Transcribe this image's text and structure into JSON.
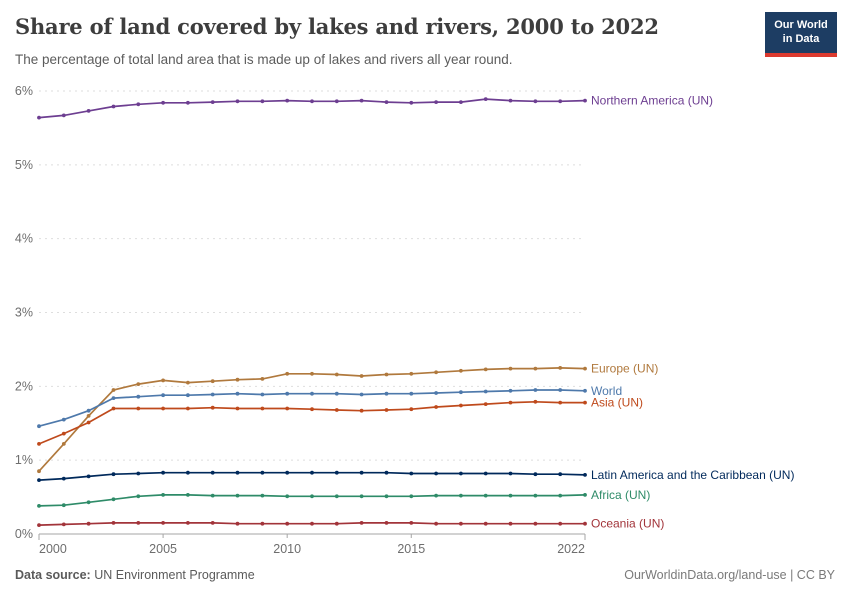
{
  "header": {
    "title": "Share of land covered by lakes and rivers, 2000 to 2022",
    "subtitle": "The percentage of total land area that is made up of lakes and rivers all year round.",
    "logo": {
      "line1": "Our World",
      "line2": "in Data",
      "bg_color": "#1d3d63",
      "bar_color": "#dc3a2f"
    }
  },
  "footer": {
    "datasource_label": "Data source:",
    "datasource_value": " UN Environment Programme",
    "credit": "OurWorldinData.org/land-use | CC BY"
  },
  "chart_data": {
    "type": "line",
    "title": "Share of land covered by lakes and rivers, 2000 to 2022",
    "xlabel": "",
    "ylabel": "",
    "x": [
      2000,
      2001,
      2002,
      2003,
      2004,
      2005,
      2006,
      2007,
      2008,
      2009,
      2010,
      2011,
      2012,
      2013,
      2014,
      2015,
      2016,
      2017,
      2018,
      2019,
      2020,
      2021,
      2022
    ],
    "xlim": [
      2000,
      2022
    ],
    "ylim": [
      0,
      6
    ],
    "xticks": [
      2000,
      2005,
      2010,
      2015,
      2022
    ],
    "yticks": [
      0,
      1,
      2,
      3,
      4,
      5,
      6
    ],
    "ytick_format": "percent",
    "grid": "horizontal-dashed",
    "legend_position": "right-end-labels",
    "series": [
      {
        "name": "Northern America (UN)",
        "color": "#6d3e91",
        "values": [
          5.64,
          5.67,
          5.73,
          5.79,
          5.82,
          5.84,
          5.84,
          5.85,
          5.86,
          5.86,
          5.87,
          5.86,
          5.86,
          5.87,
          5.85,
          5.84,
          5.85,
          5.85,
          5.89,
          5.87,
          5.86,
          5.86,
          5.87
        ]
      },
      {
        "name": "Europe (UN)",
        "color": "#b0793d",
        "values": [
          0.85,
          1.22,
          1.6,
          1.95,
          2.03,
          2.08,
          2.05,
          2.07,
          2.09,
          2.1,
          2.17,
          2.17,
          2.16,
          2.14,
          2.16,
          2.17,
          2.19,
          2.21,
          2.23,
          2.24,
          2.24,
          2.25,
          2.24
        ]
      },
      {
        "name": "World",
        "color": "#4e79ab",
        "values": [
          1.46,
          1.55,
          1.67,
          1.84,
          1.86,
          1.88,
          1.88,
          1.89,
          1.9,
          1.89,
          1.9,
          1.9,
          1.9,
          1.89,
          1.9,
          1.9,
          1.91,
          1.92,
          1.93,
          1.94,
          1.95,
          1.95,
          1.94
        ]
      },
      {
        "name": "Asia (UN)",
        "color": "#bf4a1c",
        "values": [
          1.22,
          1.36,
          1.51,
          1.7,
          1.7,
          1.7,
          1.7,
          1.71,
          1.7,
          1.7,
          1.7,
          1.69,
          1.68,
          1.67,
          1.68,
          1.69,
          1.72,
          1.74,
          1.76,
          1.78,
          1.79,
          1.78,
          1.78
        ]
      },
      {
        "name": "Latin America and the Caribbean (UN)",
        "color": "#00295b",
        "values": [
          0.73,
          0.75,
          0.78,
          0.81,
          0.82,
          0.83,
          0.83,
          0.83,
          0.83,
          0.83,
          0.83,
          0.83,
          0.83,
          0.83,
          0.83,
          0.82,
          0.82,
          0.82,
          0.82,
          0.82,
          0.81,
          0.81,
          0.8
        ]
      },
      {
        "name": "Africa (UN)",
        "color": "#2e8b68",
        "values": [
          0.38,
          0.39,
          0.43,
          0.47,
          0.51,
          0.53,
          0.53,
          0.52,
          0.52,
          0.52,
          0.51,
          0.51,
          0.51,
          0.51,
          0.51,
          0.51,
          0.52,
          0.52,
          0.52,
          0.52,
          0.52,
          0.52,
          0.53
        ]
      },
      {
        "name": "Oceania (UN)",
        "color": "#a2343a",
        "values": [
          0.12,
          0.13,
          0.14,
          0.15,
          0.15,
          0.15,
          0.15,
          0.15,
          0.14,
          0.14,
          0.14,
          0.14,
          0.14,
          0.15,
          0.15,
          0.15,
          0.14,
          0.14,
          0.14,
          0.14,
          0.14,
          0.14,
          0.14
        ]
      }
    ]
  }
}
